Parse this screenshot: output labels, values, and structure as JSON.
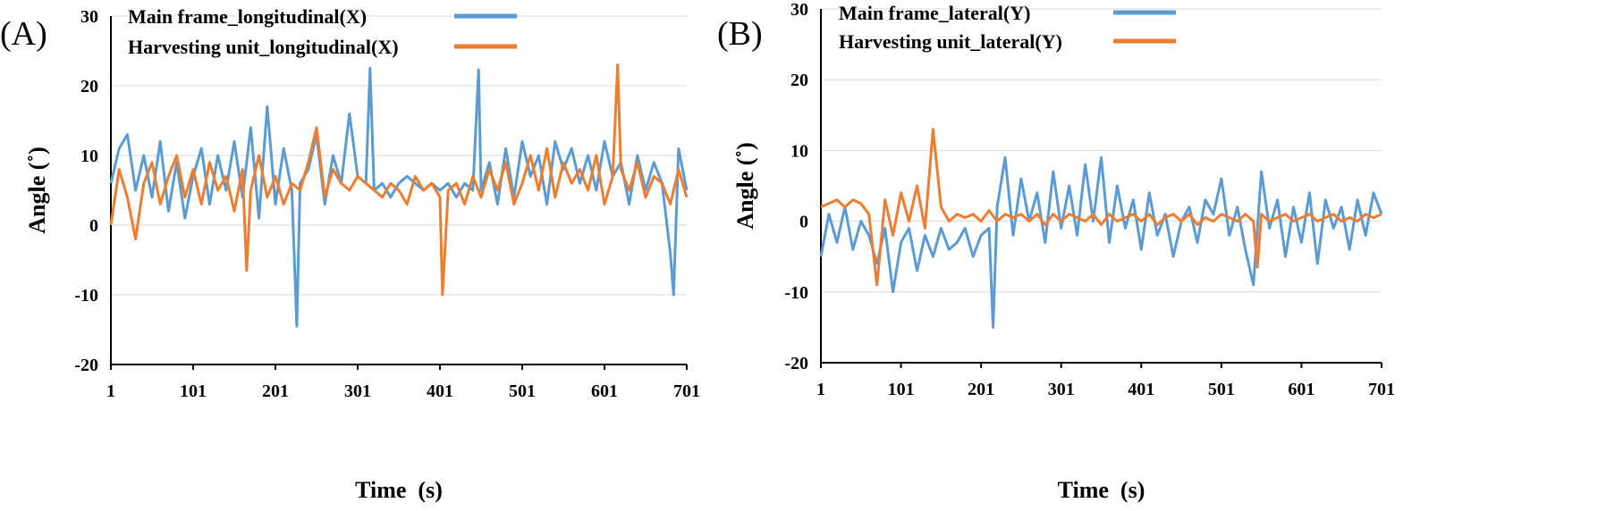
{
  "chart_data": [
    {
      "panel_label": "(A)",
      "type": "line",
      "xlabel": "Time  (s)",
      "ylabel": "Angle (˚)",
      "ylim": [
        -20,
        30
      ],
      "xlim": [
        1,
        701
      ],
      "yticks": [
        -20,
        -10,
        0,
        10,
        20,
        30
      ],
      "xticks": [
        1,
        101,
        201,
        301,
        401,
        501,
        601,
        701
      ],
      "grid": true,
      "legend_position": "top",
      "series": [
        {
          "name": "Main frame_longitudinal(X)",
          "color": "#5B9BD5",
          "x": [
            1,
            11,
            21,
            31,
            41,
            51,
            61,
            71,
            81,
            91,
            101,
            111,
            121,
            131,
            141,
            151,
            161,
            171,
            181,
            191,
            201,
            211,
            221,
            227,
            231,
            241,
            251,
            261,
            271,
            281,
            291,
            301,
            311,
            316,
            321,
            331,
            341,
            351,
            361,
            371,
            381,
            391,
            401,
            411,
            421,
            431,
            441,
            448,
            451,
            461,
            471,
            481,
            491,
            501,
            511,
            521,
            531,
            541,
            551,
            561,
            571,
            581,
            591,
            601,
            611,
            621,
            631,
            641,
            651,
            661,
            671,
            681,
            685,
            691,
            701
          ],
          "values": [
            6,
            11,
            13,
            5,
            10,
            4,
            12,
            2,
            9,
            1,
            7,
            11,
            3,
            10,
            5,
            12,
            4,
            14,
            1,
            17,
            3,
            11,
            5,
            -14.5,
            6,
            8,
            13,
            3,
            10,
            6,
            16,
            7,
            6,
            22.5,
            5,
            6,
            4,
            6,
            7,
            6,
            5,
            6,
            5,
            6,
            4,
            6,
            5,
            22.3,
            5,
            9,
            3,
            11,
            4,
            12,
            7,
            10,
            3,
            12,
            8,
            11,
            6,
            10,
            5,
            12,
            7,
            9,
            3,
            10,
            5,
            9,
            6,
            -4,
            -10,
            11,
            5
          ]
        },
        {
          "name": "Harvesting unit_longitudinal(X)",
          "color": "#ED7D31",
          "x": [
            1,
            11,
            21,
            31,
            41,
            51,
            61,
            71,
            81,
            91,
            101,
            111,
            121,
            131,
            141,
            151,
            161,
            166,
            171,
            181,
            191,
            201,
            211,
            221,
            231,
            241,
            251,
            261,
            271,
            281,
            291,
            301,
            311,
            321,
            331,
            341,
            351,
            361,
            371,
            381,
            391,
            401,
            404,
            411,
            421,
            431,
            441,
            451,
            461,
            471,
            481,
            491,
            501,
            511,
            521,
            531,
            541,
            551,
            561,
            571,
            581,
            591,
            601,
            611,
            617,
            621,
            631,
            641,
            651,
            661,
            671,
            681,
            691,
            701
          ],
          "values": [
            0,
            8,
            4,
            -2,
            6,
            9,
            3,
            7,
            10,
            4,
            8,
            3,
            9,
            5,
            7,
            2,
            8,
            -6.5,
            5,
            10,
            4,
            7,
            3,
            6,
            5,
            9,
            14,
            4,
            8,
            6,
            5,
            7,
            6,
            5,
            4,
            6,
            5,
            3,
            7,
            5,
            6,
            4,
            -10,
            5,
            6,
            3,
            7,
            4,
            8,
            5,
            9,
            3,
            6,
            10,
            5,
            11,
            4,
            9,
            6,
            8,
            5,
            10,
            3,
            7,
            23,
            8,
            5,
            9,
            4,
            7,
            6,
            3,
            8,
            4
          ]
        }
      ]
    },
    {
      "panel_label": "(B)",
      "type": "line",
      "xlabel": "Time  (s)",
      "ylabel": "Angle (˚)",
      "ylim": [
        -20,
        30
      ],
      "xlim": [
        1,
        701
      ],
      "yticks": [
        -20,
        -10,
        0,
        10,
        20,
        30
      ],
      "xticks": [
        1,
        101,
        201,
        301,
        401,
        501,
        601,
        701
      ],
      "grid": true,
      "legend_position": "top",
      "series": [
        {
          "name": "Main frame_lateral(Y)",
          "color": "#5B9BD5",
          "x": [
            1,
            11,
            21,
            31,
            41,
            51,
            61,
            71,
            81,
            91,
            101,
            111,
            121,
            131,
            141,
            151,
            161,
            171,
            181,
            191,
            201,
            211,
            216,
            221,
            231,
            241,
            251,
            261,
            271,
            281,
            291,
            301,
            311,
            321,
            331,
            341,
            351,
            361,
            371,
            381,
            391,
            401,
            411,
            421,
            431,
            441,
            451,
            461,
            471,
            481,
            491,
            501,
            511,
            521,
            531,
            541,
            551,
            561,
            571,
            581,
            591,
            601,
            611,
            621,
            631,
            641,
            651,
            661,
            671,
            681,
            691,
            701
          ],
          "values": [
            -5,
            1,
            -3,
            2,
            -4,
            0,
            -2,
            -6,
            -1,
            -10,
            -3,
            -1,
            -7,
            -2,
            -5,
            -1,
            -4,
            -3,
            -1,
            -5,
            -2,
            -1,
            -15,
            2,
            9,
            -2,
            6,
            0,
            4,
            -3,
            7,
            -1,
            5,
            -2,
            8,
            0,
            9,
            -3,
            5,
            -1,
            3,
            -4,
            4,
            -2,
            1,
            -5,
            0,
            2,
            -3,
            3,
            1,
            6,
            -2,
            2,
            -4,
            -9,
            7,
            -1,
            3,
            -5,
            2,
            -3,
            4,
            -6,
            3,
            -1,
            2,
            -4,
            3,
            -2,
            4,
            1
          ]
        },
        {
          "name": "Harvesting unit_lateral(Y)",
          "color": "#ED7D31",
          "x": [
            1,
            11,
            21,
            31,
            41,
            51,
            61,
            71,
            81,
            91,
            101,
            111,
            121,
            131,
            141,
            151,
            161,
            171,
            181,
            191,
            201,
            211,
            221,
            231,
            241,
            251,
            261,
            271,
            281,
            291,
            301,
            311,
            321,
            331,
            341,
            351,
            361,
            371,
            381,
            391,
            401,
            411,
            421,
            431,
            441,
            451,
            461,
            471,
            481,
            491,
            501,
            511,
            521,
            531,
            541,
            546,
            551,
            561,
            571,
            581,
            591,
            601,
            611,
            621,
            631,
            641,
            651,
            661,
            671,
            681,
            691,
            701
          ],
          "values": [
            2,
            2.5,
            3,
            2,
            3,
            2.5,
            1,
            -9,
            3,
            -2,
            4,
            0,
            5,
            -1,
            13,
            2,
            0,
            1,
            0.5,
            1,
            0,
            1.5,
            0,
            1,
            0.5,
            1,
            0,
            1,
            -0.5,
            1,
            0,
            1,
            0.5,
            0,
            1,
            -0.5,
            1,
            0,
            0.5,
            1,
            0,
            1,
            -0.5,
            0.5,
            1,
            0,
            1,
            -0.5,
            0.5,
            0,
            1,
            0.5,
            0,
            1,
            0,
            -6.5,
            1,
            0,
            0.5,
            1,
            0,
            0.5,
            1,
            0,
            0.5,
            1,
            0,
            0.5,
            0,
            1,
            0.5,
            1
          ]
        }
      ]
    }
  ]
}
